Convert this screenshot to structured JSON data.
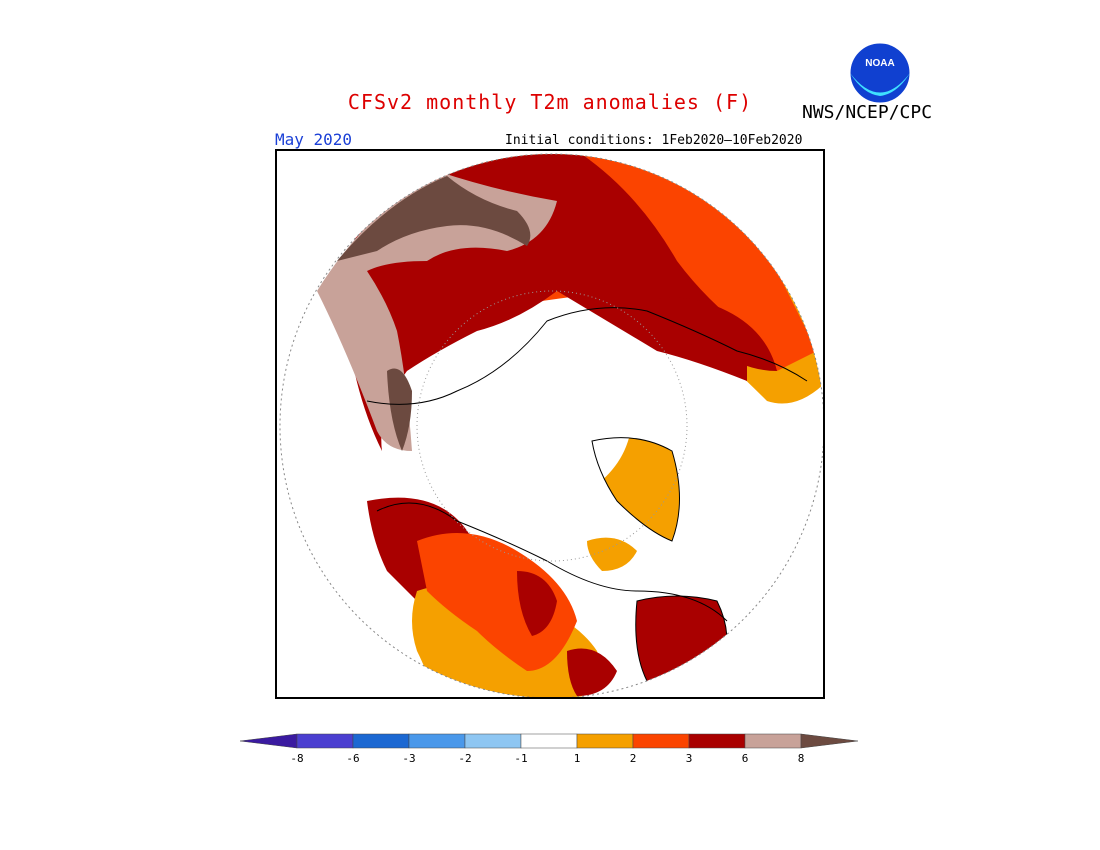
{
  "title": "CFSv2 monthly T2m anomalies (F)",
  "agency": "NWS/NCEP/CPC",
  "logo": {
    "icon": "noaa-logo",
    "text": "NOAA"
  },
  "valid_month": "May 2020",
  "initial_conditions": "Initial conditions: 1Feb2020–10Feb2020",
  "legend": {
    "colors": [
      "#3a1aa0",
      "#4b3fd0",
      "#1c68d2",
      "#4a98ea",
      "#8ec6f2",
      "#ffffff",
      "#f5a000",
      "#fb4400",
      "#a90000",
      "#c8a299",
      "#6c4a40"
    ],
    "thresholds": [
      "-8",
      "-6",
      "-3",
      "-2",
      "-1",
      "1",
      "2",
      "3",
      "6",
      "8"
    ]
  },
  "map_colors": {
    "warm_1_2": "#f5a000",
    "warm_2_3": "#fb4400",
    "warm_3_6": "#a90000",
    "warm_6_8": "#c8a299",
    "warm_gt_8": "#6c4a40"
  }
}
